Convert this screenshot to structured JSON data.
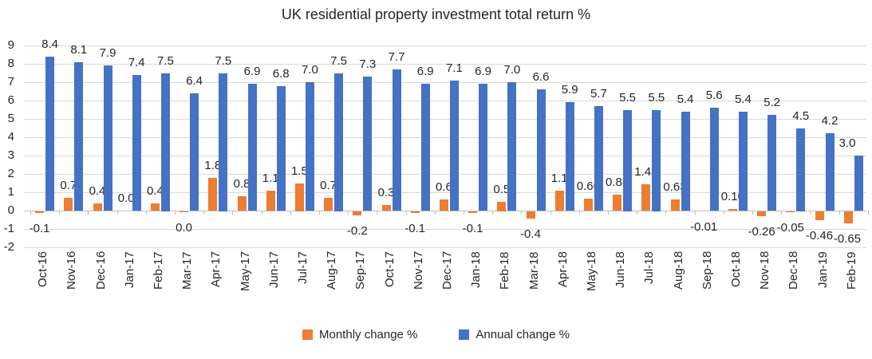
{
  "title": "UK residential property investment total return %",
  "legend": {
    "monthly": {
      "label": "Monthly change %",
      "color": "#ED7D31"
    },
    "annual": {
      "label": "Annual change %",
      "color": "#4472C4"
    }
  },
  "colors": {
    "monthly_bar": "#ED7D31",
    "annual_bar": "#4472C4",
    "gridline": "#D9D9D9",
    "axis_line": "#BFBFBF",
    "text": "#262626"
  },
  "chart_data": {
    "type": "bar",
    "title": "UK residential property investment total return %",
    "xlabel": "",
    "ylabel": "",
    "ylim": [
      -2,
      9
    ],
    "ytick_step": 1,
    "yticks": [
      9,
      8,
      7,
      6,
      5,
      4,
      3,
      2,
      1,
      0,
      -1,
      -2
    ],
    "grid": true,
    "legend_position": "bottom",
    "categories": [
      "Oct-16",
      "Nov-16",
      "Dec-16",
      "Jan-17",
      "Feb-17",
      "Mar-17",
      "Apr-17",
      "May-17",
      "Jun-17",
      "Jul-17",
      "Aug-17",
      "Sep-17",
      "Oct-17",
      "Nov-17",
      "Dec-17",
      "Jan-18",
      "Feb-18",
      "Mar-18",
      "Apr-18",
      "May-18",
      "Jun-18",
      "Jul-18",
      "Aug-18",
      "Sep-18",
      "Oct-18",
      "Nov-18",
      "Dec-18",
      "Jan-19",
      "Feb-19"
    ],
    "series": [
      {
        "name": "Monthly change %",
        "color": "#ED7D31",
        "values": [
          -0.1,
          0.7,
          0.4,
          0.0,
          0.4,
          -0.04,
          1.8,
          0.8,
          1.1,
          1.5,
          0.7,
          -0.2,
          0.3,
          -0.1,
          0.6,
          -0.1,
          0.5,
          -0.4,
          1.1,
          0.66,
          0.88,
          1.43,
          0.63,
          -0.01,
          0.1,
          -0.26,
          -0.05,
          -0.46,
          -0.65
        ],
        "labels": [
          "-0.1",
          "0.7",
          "0.4",
          "0.0",
          "0.4",
          "0.0",
          "1.8",
          "0.8",
          "1.1",
          "1.5",
          "0.7",
          "-0.2",
          "0.3",
          "-0.1",
          "0.6",
          "-0.1",
          "0.5",
          "-0.4",
          "1.1",
          "0.66",
          "0.88",
          "1.43",
          "0.63",
          "-0.01",
          "0.10",
          "-0.26",
          "-0.05",
          "-0.46",
          "-0.65"
        ]
      },
      {
        "name": "Annual change %",
        "color": "#4472C4",
        "values": [
          8.4,
          8.1,
          7.9,
          7.4,
          7.5,
          6.4,
          7.5,
          6.9,
          6.8,
          7.0,
          7.5,
          7.3,
          7.7,
          6.9,
          7.1,
          6.9,
          7.0,
          6.6,
          5.9,
          5.7,
          5.5,
          5.5,
          5.4,
          5.6,
          5.4,
          5.2,
          4.5,
          4.2,
          3.0
        ],
        "labels": [
          "8.4",
          "8.1",
          "7.9",
          "7.4",
          "7.5",
          "6.4",
          "7.5",
          "6.9",
          "6.8",
          "7.0",
          "7.5",
          "7.3",
          "7.7",
          "6.9",
          "7.1",
          "6.9",
          "7.0",
          "6.6",
          "5.9",
          "5.7",
          "5.5",
          "5.5",
          "5.4",
          "5.6",
          "5.4",
          "5.2",
          "4.5",
          "4.2",
          "3.0"
        ]
      }
    ]
  }
}
